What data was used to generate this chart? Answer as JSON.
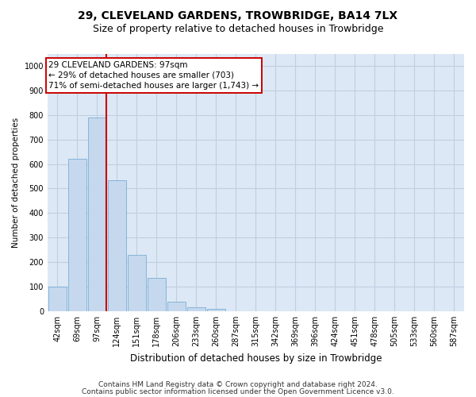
{
  "title": "29, CLEVELAND GARDENS, TROWBRIDGE, BA14 7LX",
  "subtitle": "Size of property relative to detached houses in Trowbridge",
  "xlabel": "Distribution of detached houses by size in Trowbridge",
  "ylabel": "Number of detached properties",
  "categories": [
    "42sqm",
    "69sqm",
    "97sqm",
    "124sqm",
    "151sqm",
    "178sqm",
    "206sqm",
    "233sqm",
    "260sqm",
    "287sqm",
    "315sqm",
    "342sqm",
    "369sqm",
    "396sqm",
    "424sqm",
    "451sqm",
    "478sqm",
    "505sqm",
    "533sqm",
    "560sqm",
    "587sqm"
  ],
  "values": [
    100,
    620,
    790,
    535,
    230,
    135,
    40,
    15,
    10,
    0,
    0,
    0,
    0,
    0,
    0,
    0,
    0,
    0,
    0,
    0,
    0
  ],
  "bar_color": "#c5d8ee",
  "bar_edge_color": "#7aaed4",
  "highlight_index": 2,
  "highlight_line_color": "#cc0000",
  "annotation_text": "29 CLEVELAND GARDENS: 97sqm\n← 29% of detached houses are smaller (703)\n71% of semi-detached houses are larger (1,743) →",
  "annotation_box_color": "#ffffff",
  "annotation_box_edge_color": "#cc0000",
  "ylim": [
    0,
    1050
  ],
  "yticks": [
    0,
    100,
    200,
    300,
    400,
    500,
    600,
    700,
    800,
    900,
    1000
  ],
  "grid_color": "#c0cfe0",
  "background_color": "#dce8f5",
  "footer_line1": "Contains HM Land Registry data © Crown copyright and database right 2024.",
  "footer_line2": "Contains public sector information licensed under the Open Government Licence v3.0.",
  "title_fontsize": 10,
  "subtitle_fontsize": 9,
  "xlabel_fontsize": 8.5,
  "ylabel_fontsize": 7.5,
  "tick_fontsize": 7,
  "footer_fontsize": 6.5,
  "annotation_fontsize": 7.5
}
